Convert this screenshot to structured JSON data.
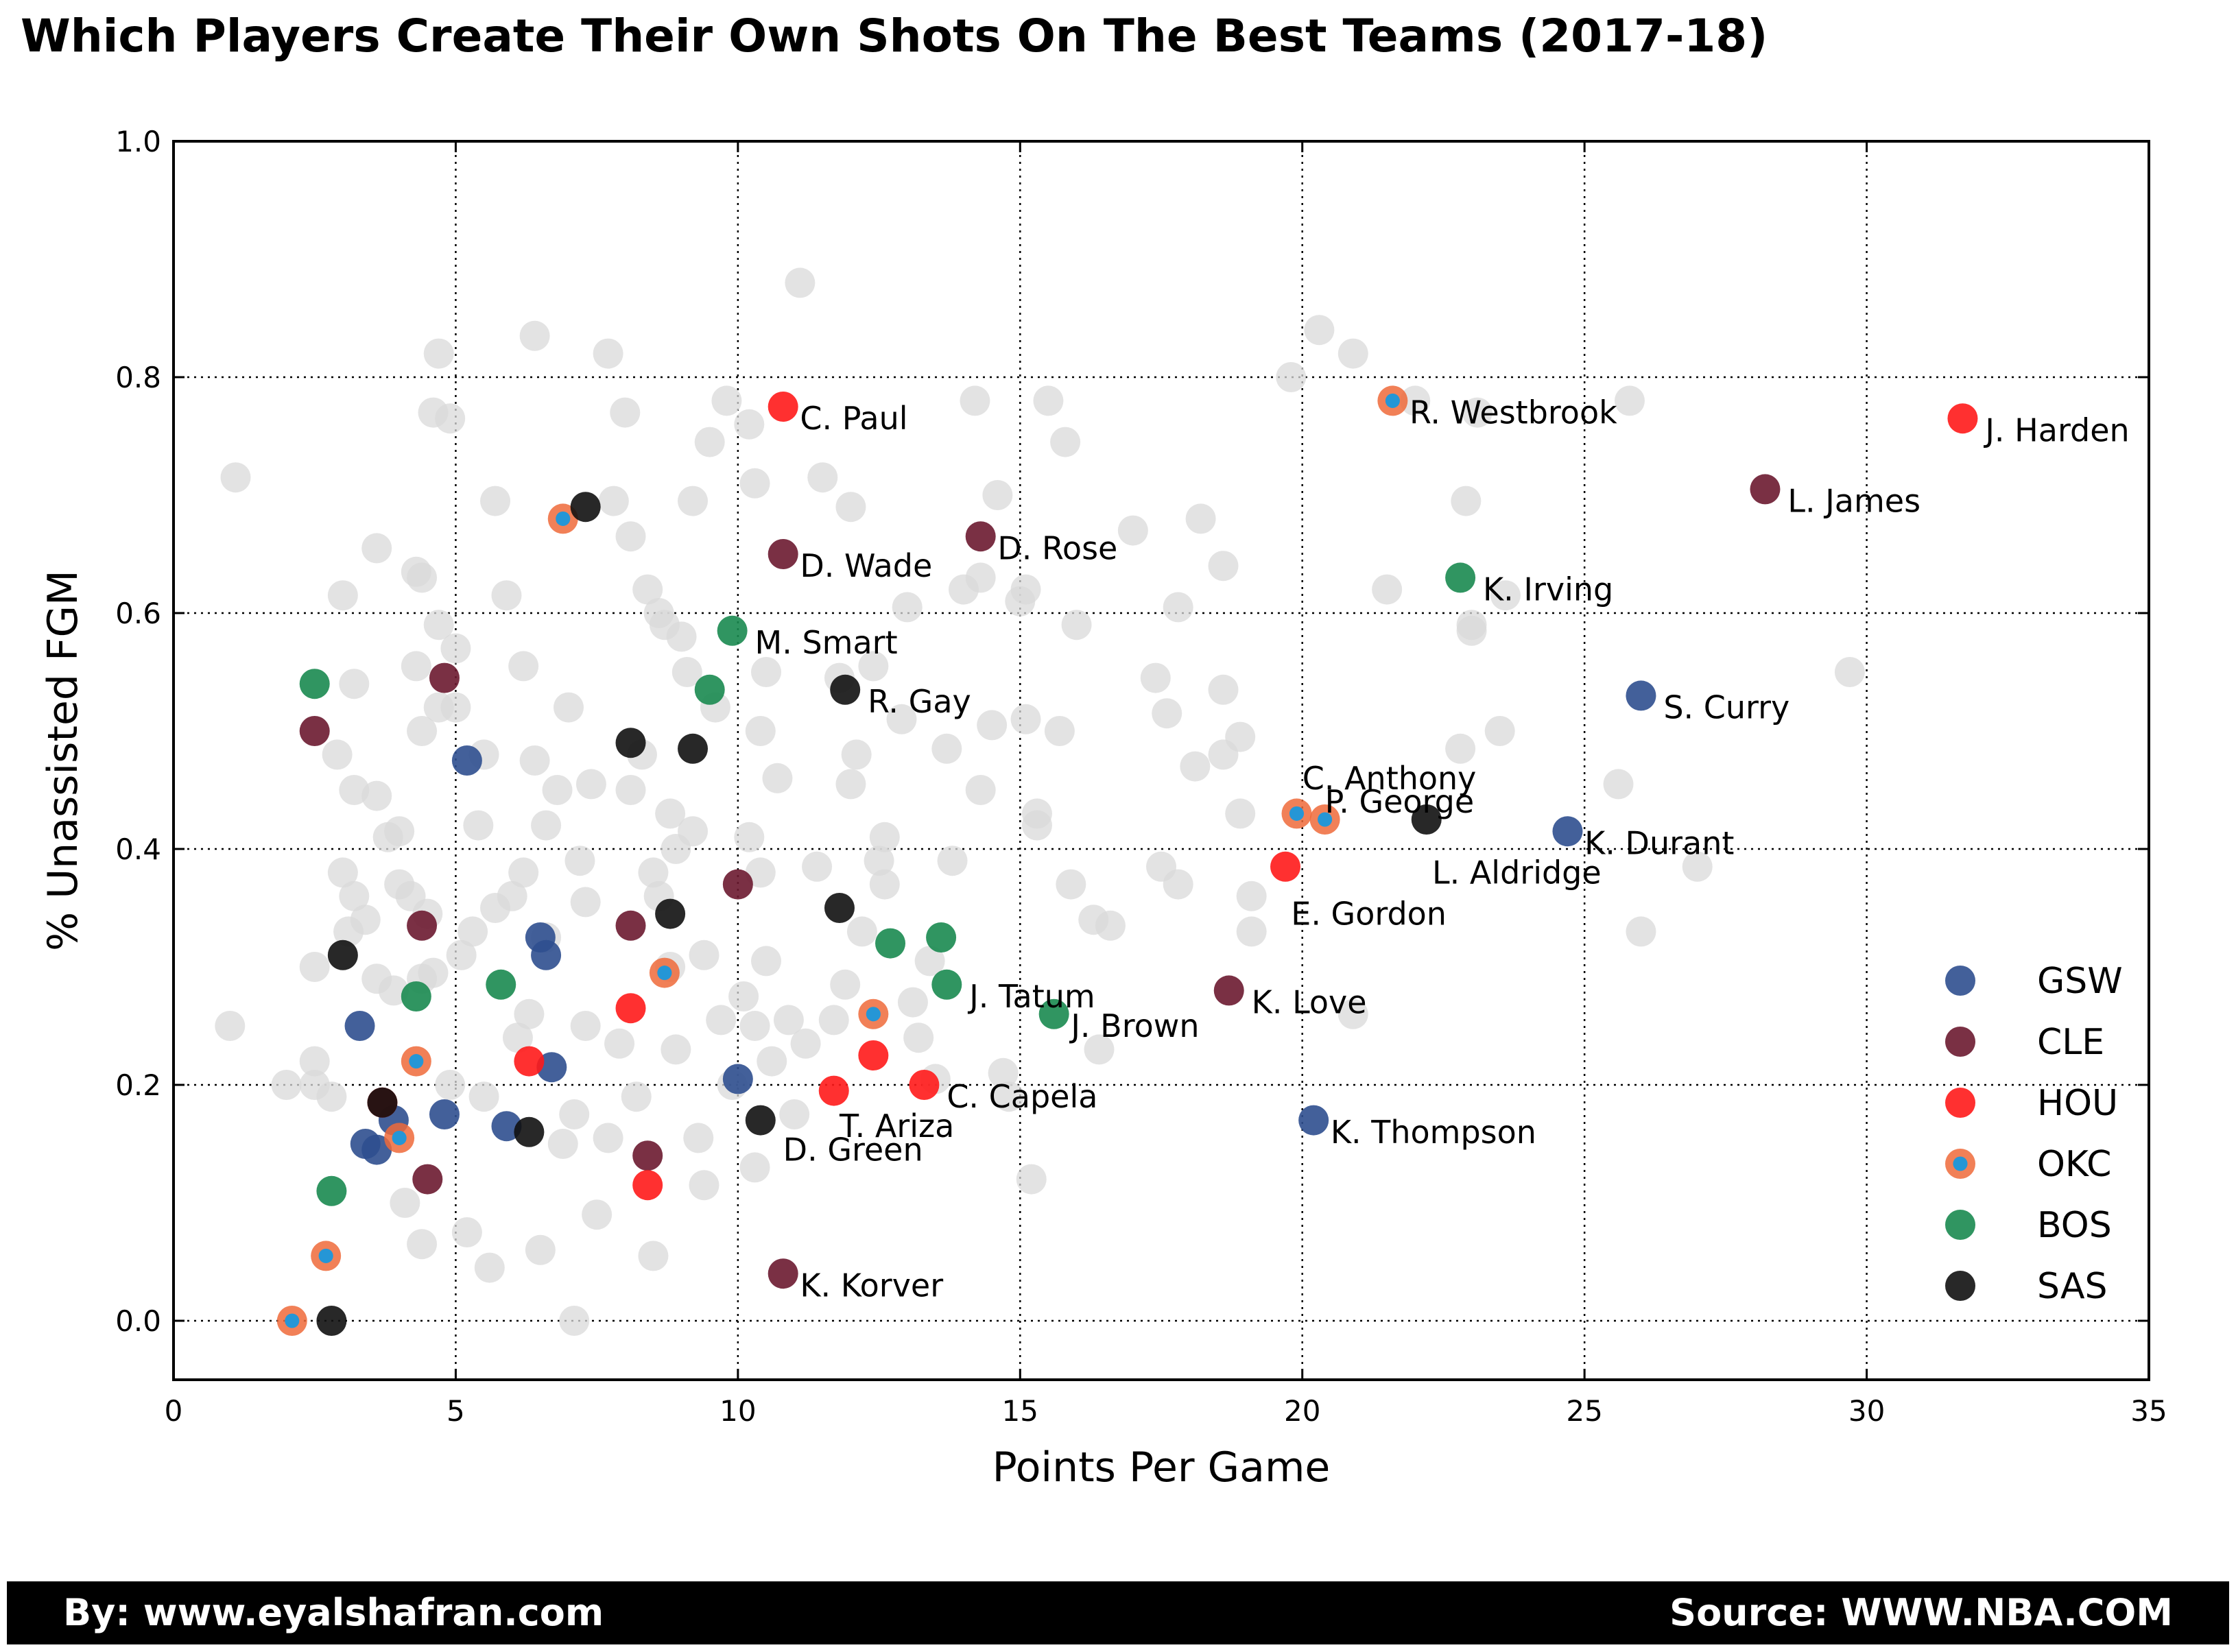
{
  "title": "Which Players Create Their Own Shots On The Best Teams (2017-18)",
  "footer": {
    "left": "By: www.eyalshafran.com",
    "right": "Source: WWW.NBA.COM"
  },
  "chart_data": {
    "type": "scatter",
    "title": "Which Players Create Their Own Shots On The Best Teams (2017-18)",
    "xlabel": "Points Per Game",
    "ylabel": "% Unassisted FGM",
    "xlim": [
      0,
      35
    ],
    "ylim": [
      -0.05,
      1.0
    ],
    "xticks": [
      0,
      5,
      10,
      15,
      20,
      25,
      30,
      35
    ],
    "yticks": [
      0.0,
      0.2,
      0.4,
      0.6,
      0.8,
      1.0
    ],
    "xtick_labels": [
      "0",
      "5",
      "10",
      "15",
      "20",
      "25",
      "30",
      "35"
    ],
    "ytick_labels": [
      "0.0",
      "0.2",
      "0.4",
      "0.6",
      "0.8",
      "1.0"
    ],
    "grid": true,
    "legend_position": "right",
    "colors": {
      "background": "#d9d9d9",
      "GSW": "#2f4f8f",
      "CLE": "#6b1a30",
      "HOU": "#ff1a1a",
      "OKC_edge": "#ef6a3a",
      "OKC_fill": "#2596d6",
      "BOS": "#1a8a50",
      "SAS": "#111111"
    },
    "background_points": [
      [
        1.0,
        0.25
      ],
      [
        1.1,
        0.715
      ],
      [
        2.0,
        0.2
      ],
      [
        2.5,
        0.2
      ],
      [
        2.5,
        0.3
      ],
      [
        2.5,
        0.22
      ],
      [
        2.8,
        0.19
      ],
      [
        2.9,
        0.48
      ],
      [
        3.0,
        0.38
      ],
      [
        3.0,
        0.615
      ],
      [
        3.1,
        0.33
      ],
      [
        3.2,
        0.45
      ],
      [
        3.2,
        0.36
      ],
      [
        3.2,
        0.54
      ],
      [
        3.4,
        0.34
      ],
      [
        3.6,
        0.29
      ],
      [
        3.6,
        0.445
      ],
      [
        3.6,
        0.655
      ],
      [
        3.8,
        0.41
      ],
      [
        3.9,
        0.28
      ],
      [
        4.0,
        0.415
      ],
      [
        4.0,
        0.37
      ],
      [
        4.1,
        0.1
      ],
      [
        4.2,
        0.36
      ],
      [
        4.3,
        0.635
      ],
      [
        4.3,
        0.555
      ],
      [
        4.4,
        0.5
      ],
      [
        4.4,
        0.63
      ],
      [
        4.4,
        0.29
      ],
      [
        4.4,
        0.065
      ],
      [
        4.5,
        0.345
      ],
      [
        4.6,
        0.295
      ],
      [
        4.6,
        0.77
      ],
      [
        4.7,
        0.59
      ],
      [
        4.7,
        0.52
      ],
      [
        4.7,
        0.82
      ],
      [
        4.9,
        0.765
      ],
      [
        4.9,
        0.2
      ],
      [
        5.0,
        0.57
      ],
      [
        5.0,
        0.52
      ],
      [
        5.1,
        0.31
      ],
      [
        5.2,
        0.075
      ],
      [
        5.3,
        0.33
      ],
      [
        5.4,
        0.42
      ],
      [
        5.5,
        0.48
      ],
      [
        5.5,
        0.19
      ],
      [
        5.6,
        0.045
      ],
      [
        5.7,
        0.695
      ],
      [
        5.7,
        0.35
      ],
      [
        5.9,
        0.615
      ],
      [
        6.0,
        0.36
      ],
      [
        6.1,
        0.24
      ],
      [
        6.2,
        0.38
      ],
      [
        6.2,
        0.555
      ],
      [
        6.3,
        0.26
      ],
      [
        6.4,
        0.835
      ],
      [
        6.4,
        0.475
      ],
      [
        6.5,
        0.06
      ],
      [
        6.6,
        0.325
      ],
      [
        6.6,
        0.42
      ],
      [
        6.8,
        0.45
      ],
      [
        6.9,
        0.15
      ],
      [
        7.0,
        0.52
      ],
      [
        7.1,
        0.175
      ],
      [
        7.1,
        0.0
      ],
      [
        7.2,
        0.39
      ],
      [
        7.3,
        0.25
      ],
      [
        7.3,
        0.355
      ],
      [
        7.4,
        0.455
      ],
      [
        7.5,
        0.09
      ],
      [
        7.7,
        0.155
      ],
      [
        7.7,
        0.82
      ],
      [
        7.8,
        0.695
      ],
      [
        7.9,
        0.235
      ],
      [
        8.0,
        0.77
      ],
      [
        8.1,
        0.665
      ],
      [
        8.1,
        0.45
      ],
      [
        8.2,
        0.19
      ],
      [
        8.3,
        0.48
      ],
      [
        8.4,
        0.62
      ],
      [
        8.5,
        0.38
      ],
      [
        8.5,
        0.055
      ],
      [
        8.6,
        0.6
      ],
      [
        8.6,
        0.36
      ],
      [
        8.7,
        0.59
      ],
      [
        8.8,
        0.3
      ],
      [
        8.8,
        0.43
      ],
      [
        8.9,
        0.23
      ],
      [
        8.9,
        0.4
      ],
      [
        9.0,
        0.58
      ],
      [
        9.1,
        0.55
      ],
      [
        9.2,
        0.695
      ],
      [
        9.2,
        0.415
      ],
      [
        9.3,
        0.155
      ],
      [
        9.4,
        0.31
      ],
      [
        9.4,
        0.115
      ],
      [
        9.5,
        0.745
      ],
      [
        9.6,
        0.52
      ],
      [
        9.7,
        0.255
      ],
      [
        9.8,
        0.78
      ],
      [
        9.9,
        0.2
      ],
      [
        10.1,
        0.275
      ],
      [
        10.2,
        0.41
      ],
      [
        10.2,
        0.76
      ],
      [
        10.3,
        0.13
      ],
      [
        10.3,
        0.71
      ],
      [
        10.3,
        0.25
      ],
      [
        10.4,
        0.5
      ],
      [
        10.4,
        0.38
      ],
      [
        10.5,
        0.55
      ],
      [
        10.5,
        0.305
      ],
      [
        10.6,
        0.22
      ],
      [
        10.7,
        0.46
      ],
      [
        10.9,
        0.255
      ],
      [
        11.0,
        0.175
      ],
      [
        11.1,
        0.88
      ],
      [
        11.2,
        0.235
      ],
      [
        11.4,
        0.385
      ],
      [
        11.5,
        0.715
      ],
      [
        11.7,
        0.255
      ],
      [
        11.8,
        0.545
      ],
      [
        11.9,
        0.285
      ],
      [
        12.0,
        0.455
      ],
      [
        12.0,
        0.69
      ],
      [
        12.1,
        0.48
      ],
      [
        12.2,
        0.33
      ],
      [
        12.4,
        0.555
      ],
      [
        12.5,
        0.39
      ],
      [
        12.6,
        0.41
      ],
      [
        12.6,
        0.37
      ],
      [
        12.9,
        0.51
      ],
      [
        13.0,
        0.605
      ],
      [
        13.1,
        0.27
      ],
      [
        13.2,
        0.24
      ],
      [
        13.4,
        0.305
      ],
      [
        13.5,
        0.205
      ],
      [
        13.7,
        0.485
      ],
      [
        13.8,
        0.39
      ],
      [
        14.0,
        0.62
      ],
      [
        14.2,
        0.78
      ],
      [
        14.3,
        0.45
      ],
      [
        14.3,
        0.63
      ],
      [
        14.5,
        0.505
      ],
      [
        14.6,
        0.7
      ],
      [
        14.7,
        0.21
      ],
      [
        14.8,
        0.19
      ],
      [
        15.0,
        0.61
      ],
      [
        15.1,
        0.62
      ],
      [
        15.1,
        0.51
      ],
      [
        15.2,
        0.12
      ],
      [
        15.3,
        0.43
      ],
      [
        15.3,
        0.42
      ],
      [
        15.5,
        0.78
      ],
      [
        15.7,
        0.5
      ],
      [
        15.8,
        0.745
      ],
      [
        15.9,
        0.37
      ],
      [
        16.0,
        0.59
      ],
      [
        16.3,
        0.34
      ],
      [
        16.4,
        0.23
      ],
      [
        16.6,
        0.335
      ],
      [
        17.0,
        0.67
      ],
      [
        17.4,
        0.545
      ],
      [
        17.5,
        0.385
      ],
      [
        17.6,
        0.515
      ],
      [
        17.8,
        0.605
      ],
      [
        17.8,
        0.37
      ],
      [
        18.1,
        0.47
      ],
      [
        18.2,
        0.68
      ],
      [
        18.6,
        0.48
      ],
      [
        18.6,
        0.535
      ],
      [
        18.6,
        0.64
      ],
      [
        18.9,
        0.495
      ],
      [
        18.9,
        0.43
      ],
      [
        19.1,
        0.33
      ],
      [
        19.1,
        0.36
      ],
      [
        19.8,
        0.8
      ],
      [
        20.3,
        0.84
      ],
      [
        20.9,
        0.82
      ],
      [
        20.9,
        0.26
      ],
      [
        21.5,
        0.62
      ],
      [
        22.0,
        0.78
      ],
      [
        22.8,
        0.485
      ],
      [
        22.9,
        0.695
      ],
      [
        23.0,
        0.585
      ],
      [
        23.0,
        0.59
      ],
      [
        23.1,
        0.77
      ],
      [
        23.5,
        0.5
      ],
      [
        23.6,
        0.615
      ],
      [
        25.6,
        0.455
      ],
      [
        25.8,
        0.78
      ],
      [
        26.0,
        0.33
      ],
      [
        27.0,
        0.385
      ],
      [
        29.7,
        0.55
      ]
    ],
    "series": [
      {
        "name": "GSW",
        "points": [
          [
            3.4,
            0.15
          ],
          [
            3.6,
            0.145
          ],
          [
            3.3,
            0.25
          ],
          [
            3.9,
            0.17
          ],
          [
            4.8,
            0.175
          ],
          [
            5.2,
            0.475
          ],
          [
            5.9,
            0.165
          ],
          [
            6.5,
            0.325
          ],
          [
            6.6,
            0.31
          ],
          [
            6.7,
            0.215
          ],
          [
            10.0,
            0.205
          ],
          [
            20.2,
            0.17
          ],
          [
            24.7,
            0.415
          ],
          [
            26.0,
            0.53
          ]
        ]
      },
      {
        "name": "CLE",
        "points": [
          [
            2.5,
            0.5
          ],
          [
            4.4,
            0.335
          ],
          [
            4.5,
            0.12
          ],
          [
            4.8,
            0.545
          ],
          [
            8.1,
            0.335
          ],
          [
            8.4,
            0.14
          ],
          [
            10.0,
            0.37
          ],
          [
            10.8,
            0.04
          ],
          [
            10.8,
            0.65
          ],
          [
            14.3,
            0.665
          ],
          [
            18.7,
            0.28
          ],
          [
            28.2,
            0.705
          ]
        ]
      },
      {
        "name": "HOU",
        "points": [
          [
            3.7,
            0.185
          ],
          [
            6.3,
            0.22
          ],
          [
            8.1,
            0.265
          ],
          [
            8.4,
            0.115
          ],
          [
            10.8,
            0.775
          ],
          [
            11.7,
            0.195
          ],
          [
            12.4,
            0.225
          ],
          [
            13.3,
            0.2
          ],
          [
            19.7,
            0.385
          ],
          [
            31.7,
            0.765
          ]
        ]
      },
      {
        "name": "OKC",
        "points": [
          [
            2.1,
            0.0
          ],
          [
            2.7,
            0.055
          ],
          [
            4.0,
            0.155
          ],
          [
            4.3,
            0.22
          ],
          [
            6.9,
            0.68
          ],
          [
            8.7,
            0.295
          ],
          [
            12.4,
            0.26
          ],
          [
            19.9,
            0.43
          ],
          [
            20.4,
            0.425
          ],
          [
            21.6,
            0.78
          ]
        ]
      },
      {
        "name": "BOS",
        "points": [
          [
            2.5,
            0.54
          ],
          [
            2.8,
            0.11
          ],
          [
            4.3,
            0.275
          ],
          [
            5.8,
            0.285
          ],
          [
            9.5,
            0.535
          ],
          [
            9.9,
            0.585
          ],
          [
            12.7,
            0.32
          ],
          [
            13.6,
            0.325
          ],
          [
            13.7,
            0.285
          ],
          [
            15.6,
            0.26
          ],
          [
            22.8,
            0.63
          ]
        ]
      },
      {
        "name": "SAS",
        "points": [
          [
            2.8,
            0.0
          ],
          [
            3.0,
            0.31
          ],
          [
            3.7,
            0.185
          ],
          [
            6.3,
            0.16
          ],
          [
            7.3,
            0.69
          ],
          [
            8.1,
            0.49
          ],
          [
            8.8,
            0.345
          ],
          [
            9.2,
            0.485
          ],
          [
            10.4,
            0.17
          ],
          [
            11.8,
            0.35
          ],
          [
            11.9,
            0.535
          ],
          [
            22.2,
            0.425
          ]
        ]
      }
    ],
    "annotations": [
      {
        "text": "C. Paul",
        "x": 11.1,
        "y": 0.765
      },
      {
        "text": "R. Westbrook",
        "x": 21.9,
        "y": 0.77
      },
      {
        "text": "J. Harden",
        "x": 32.1,
        "y": 0.755
      },
      {
        "text": "L. James",
        "x": 28.6,
        "y": 0.695
      },
      {
        "text": "D. Wade",
        "x": 11.1,
        "y": 0.64
      },
      {
        "text": "D. Rose",
        "x": 14.6,
        "y": 0.655
      },
      {
        "text": "K. Irving",
        "x": 23.2,
        "y": 0.62
      },
      {
        "text": "M. Smart",
        "x": 10.3,
        "y": 0.575
      },
      {
        "text": "R. Gay",
        "x": 12.3,
        "y": 0.525
      },
      {
        "text": "S. Curry",
        "x": 26.4,
        "y": 0.52
      },
      {
        "text": "C. Anthony",
        "x": 20.0,
        "y": 0.46
      },
      {
        "text": "P. George",
        "x": 20.4,
        "y": 0.44
      },
      {
        "text": "K. Durant",
        "x": 25.0,
        "y": 0.405
      },
      {
        "text": "L. Aldridge",
        "x": 22.3,
        "y": 0.38
      },
      {
        "text": "E. Gordon",
        "x": 19.8,
        "y": 0.345
      },
      {
        "text": "J. Tatum",
        "x": 14.1,
        "y": 0.275
      },
      {
        "text": "K. Love",
        "x": 19.1,
        "y": 0.27
      },
      {
        "text": "J. Brown",
        "x": 15.9,
        "y": 0.25
      },
      {
        "text": "C. Capela",
        "x": 13.7,
        "y": 0.19
      },
      {
        "text": "T. Ariza",
        "x": 11.8,
        "y": 0.165
      },
      {
        "text": "D. Green",
        "x": 10.8,
        "y": 0.145
      },
      {
        "text": "K. Thompson",
        "x": 20.5,
        "y": 0.16
      },
      {
        "text": "K. Korver",
        "x": 11.1,
        "y": 0.03
      }
    ]
  }
}
